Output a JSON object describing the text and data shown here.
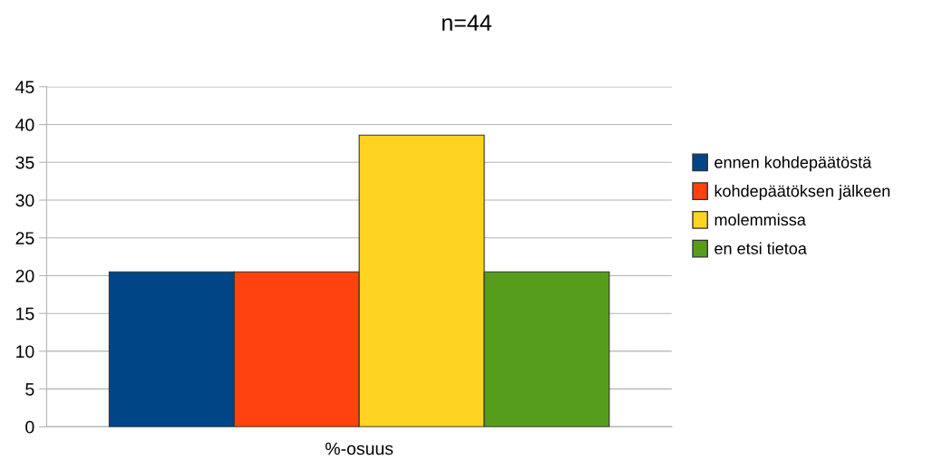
{
  "chart_data": {
    "type": "bar",
    "title": "n=44",
    "categories": [
      "%-osuus"
    ],
    "series": [
      {
        "name": "ennen kohdepäätöstä",
        "color": "#004586",
        "values": [
          20.5
        ]
      },
      {
        "name": "kohdepäätöksen jälkeen",
        "color": "#ff420e",
        "values": [
          20.5
        ]
      },
      {
        "name": "molemmissa",
        "color": "#ffd320",
        "values": [
          38.6
        ]
      },
      {
        "name": "en etsi tietoa",
        "color": "#579d1c",
        "values": [
          20.5
        ]
      }
    ],
    "ylim": [
      0,
      45
    ],
    "yticks": [
      0,
      5,
      10,
      15,
      20,
      25,
      30,
      35,
      40,
      45
    ],
    "grid": "y",
    "legend": "right"
  }
}
